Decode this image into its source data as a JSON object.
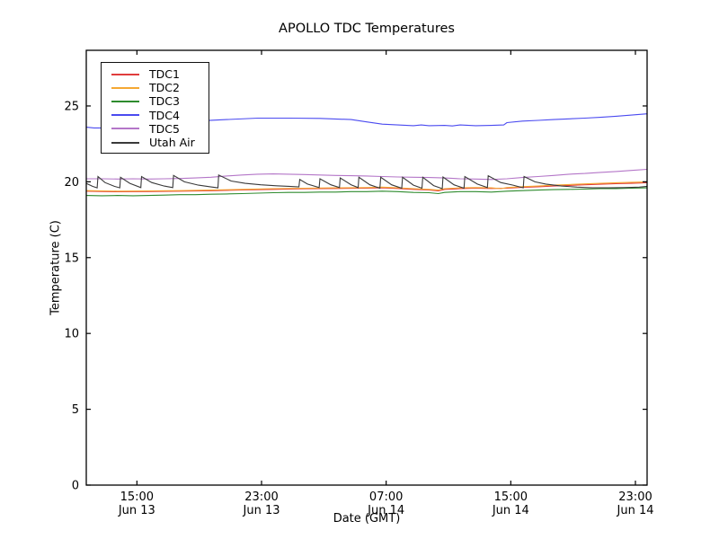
{
  "window": {
    "background": "#ffffff",
    "axis_color": "#000000"
  },
  "chart_data": {
    "type": "line",
    "title": "APOLLO TDC Temperatures",
    "xlabel": "Date (GMT)",
    "ylabel": "Temperature (C)",
    "x_unit": "hours from plot start (~11:45 Jun 13 GMT)",
    "xlim": [
      0,
      36
    ],
    "ylim": [
      0,
      28.67
    ],
    "grid": false,
    "legend_position": "upper left",
    "yticks": [
      0,
      5,
      10,
      15,
      20,
      25
    ],
    "xticks": [
      {
        "t": 3.25,
        "time": "15:00",
        "date": "Jun 13"
      },
      {
        "t": 11.25,
        "time": "23:00",
        "date": "Jun 13"
      },
      {
        "t": 19.25,
        "time": "07:00",
        "date": "Jun 14"
      },
      {
        "t": 27.25,
        "time": "15:00",
        "date": "Jun 14"
      },
      {
        "t": 35.25,
        "time": "23:00",
        "date": "Jun 14"
      }
    ],
    "series": [
      {
        "name": "TDC1",
        "color": "#e03c3c",
        "points": [
          [
            0,
            19.38
          ],
          [
            2,
            19.34
          ],
          [
            4,
            19.36
          ],
          [
            6,
            19.38
          ],
          [
            8,
            19.41
          ],
          [
            10,
            19.46
          ],
          [
            12,
            19.5
          ],
          [
            14,
            19.54
          ],
          [
            16,
            19.56
          ],
          [
            18,
            19.58
          ],
          [
            19,
            19.6
          ],
          [
            20,
            19.56
          ],
          [
            21,
            19.5
          ],
          [
            22,
            19.46
          ],
          [
            22.6,
            19.4
          ],
          [
            23,
            19.5
          ],
          [
            24,
            19.55
          ],
          [
            25,
            19.58
          ],
          [
            26,
            19.56
          ],
          [
            27,
            19.58
          ],
          [
            28,
            19.63
          ],
          [
            29,
            19.67
          ],
          [
            30,
            19.72
          ],
          [
            31,
            19.76
          ],
          [
            32,
            19.8
          ],
          [
            33,
            19.84
          ],
          [
            34,
            19.88
          ],
          [
            35,
            19.9
          ],
          [
            36,
            19.93
          ]
        ]
      },
      {
        "name": "TDC2",
        "color": "#f5a833",
        "points": [
          [
            0,
            19.42
          ],
          [
            2,
            19.38
          ],
          [
            4,
            19.4
          ],
          [
            6,
            19.42
          ],
          [
            8,
            19.45
          ],
          [
            10,
            19.5
          ],
          [
            12,
            19.55
          ],
          [
            14,
            19.58
          ],
          [
            16,
            19.6
          ],
          [
            18,
            19.62
          ],
          [
            19,
            19.65
          ],
          [
            20,
            19.6
          ],
          [
            21,
            19.55
          ],
          [
            22,
            19.5
          ],
          [
            22.6,
            19.45
          ],
          [
            23,
            19.55
          ],
          [
            24,
            19.6
          ],
          [
            25,
            19.62
          ],
          [
            26,
            19.6
          ],
          [
            26.6,
            19.55
          ],
          [
            27,
            19.62
          ],
          [
            28,
            19.68
          ],
          [
            29,
            19.72
          ],
          [
            30,
            19.78
          ],
          [
            31,
            19.82
          ],
          [
            32,
            19.86
          ],
          [
            33,
            19.9
          ],
          [
            34,
            19.94
          ],
          [
            35,
            19.97
          ],
          [
            36,
            20.0
          ]
        ]
      },
      {
        "name": "TDC3",
        "color": "#2e8b2e",
        "points": [
          [
            0,
            19.1
          ],
          [
            1,
            19.08
          ],
          [
            2,
            19.1
          ],
          [
            3,
            19.08
          ],
          [
            4,
            19.1
          ],
          [
            5,
            19.12
          ],
          [
            6,
            19.15
          ],
          [
            7,
            19.15
          ],
          [
            8,
            19.18
          ],
          [
            9,
            19.2
          ],
          [
            10,
            19.22
          ],
          [
            11,
            19.25
          ],
          [
            12,
            19.28
          ],
          [
            13,
            19.3
          ],
          [
            14,
            19.3
          ],
          [
            15,
            19.32
          ],
          [
            16,
            19.32
          ],
          [
            17,
            19.35
          ],
          [
            18,
            19.35
          ],
          [
            19,
            19.38
          ],
          [
            20,
            19.35
          ],
          [
            21,
            19.3
          ],
          [
            22,
            19.28
          ],
          [
            22.6,
            19.22
          ],
          [
            23,
            19.3
          ],
          [
            24,
            19.35
          ],
          [
            25,
            19.35
          ],
          [
            26,
            19.32
          ],
          [
            27,
            19.38
          ],
          [
            28,
            19.42
          ],
          [
            29,
            19.45
          ],
          [
            30,
            19.48
          ],
          [
            31,
            19.5
          ],
          [
            32,
            19.52
          ],
          [
            33,
            19.55
          ],
          [
            34,
            19.55
          ],
          [
            35,
            19.58
          ],
          [
            36,
            19.6
          ]
        ]
      },
      {
        "name": "TDC4",
        "color": "#4a4af0",
        "points": [
          [
            0,
            23.6
          ],
          [
            0.5,
            23.55
          ],
          [
            1.5,
            23.55
          ],
          [
            3,
            23.65
          ],
          [
            5,
            23.8
          ],
          [
            7,
            24.0
          ],
          [
            9,
            24.1
          ],
          [
            11,
            24.2
          ],
          [
            13,
            24.2
          ],
          [
            15,
            24.18
          ],
          [
            17,
            24.1
          ],
          [
            18,
            23.95
          ],
          [
            19,
            23.8
          ],
          [
            20,
            23.75
          ],
          [
            21,
            23.7
          ],
          [
            21.5,
            23.75
          ],
          [
            22,
            23.7
          ],
          [
            23,
            23.72
          ],
          [
            23.5,
            23.68
          ],
          [
            24,
            23.75
          ],
          [
            25,
            23.7
          ],
          [
            26,
            23.72
          ],
          [
            26.8,
            23.75
          ],
          [
            27,
            23.9
          ],
          [
            28,
            24.0
          ],
          [
            29,
            24.05
          ],
          [
            30,
            24.1
          ],
          [
            31,
            24.15
          ],
          [
            32,
            24.2
          ],
          [
            33,
            24.25
          ],
          [
            34,
            24.32
          ],
          [
            35,
            24.4
          ],
          [
            36,
            24.48
          ]
        ]
      },
      {
        "name": "TDC5",
        "color": "#b476c8",
        "points": [
          [
            0,
            20.2
          ],
          [
            1,
            20.2
          ],
          [
            2,
            20.18
          ],
          [
            3,
            20.2
          ],
          [
            4,
            20.18
          ],
          [
            5,
            20.2
          ],
          [
            6,
            20.22
          ],
          [
            7,
            20.25
          ],
          [
            8,
            20.3
          ],
          [
            9,
            20.38
          ],
          [
            10,
            20.45
          ],
          [
            11,
            20.5
          ],
          [
            12,
            20.52
          ],
          [
            13,
            20.5
          ],
          [
            14,
            20.48
          ],
          [
            15,
            20.45
          ],
          [
            16,
            20.42
          ],
          [
            17,
            20.4
          ],
          [
            18,
            20.38
          ],
          [
            19,
            20.35
          ],
          [
            20,
            20.32
          ],
          [
            21,
            20.3
          ],
          [
            22,
            20.28
          ],
          [
            23,
            20.25
          ],
          [
            24,
            20.2
          ],
          [
            25,
            20.18
          ],
          [
            26,
            20.15
          ],
          [
            27,
            20.2
          ],
          [
            28,
            20.28
          ],
          [
            29,
            20.35
          ],
          [
            30,
            20.42
          ],
          [
            31,
            20.5
          ],
          [
            32,
            20.55
          ],
          [
            33,
            20.62
          ],
          [
            34,
            20.68
          ],
          [
            35,
            20.75
          ],
          [
            36,
            20.82
          ]
        ]
      },
      {
        "name": "Utah Air",
        "color": "#3a3a3a",
        "points": [
          [
            0,
            19.9
          ],
          [
            0.4,
            19.7
          ],
          [
            0.7,
            19.6
          ],
          [
            0.75,
            20.35
          ],
          [
            1.2,
            19.95
          ],
          [
            1.8,
            19.7
          ],
          [
            2.15,
            19.6
          ],
          [
            2.2,
            20.3
          ],
          [
            2.8,
            19.9
          ],
          [
            3.5,
            19.62
          ],
          [
            3.55,
            20.35
          ],
          [
            4.2,
            19.95
          ],
          [
            5.0,
            19.72
          ],
          [
            5.55,
            19.62
          ],
          [
            5.6,
            20.42
          ],
          [
            6.3,
            20.0
          ],
          [
            7.2,
            19.78
          ],
          [
            8.0,
            19.66
          ],
          [
            8.45,
            19.6
          ],
          [
            8.5,
            20.45
          ],
          [
            9.3,
            20.05
          ],
          [
            10.2,
            19.9
          ],
          [
            11.2,
            19.8
          ],
          [
            12.2,
            19.74
          ],
          [
            13.0,
            19.7
          ],
          [
            13.65,
            19.66
          ],
          [
            13.7,
            20.15
          ],
          [
            14.2,
            19.85
          ],
          [
            14.95,
            19.62
          ],
          [
            15.0,
            20.2
          ],
          [
            15.7,
            19.8
          ],
          [
            16.25,
            19.62
          ],
          [
            16.3,
            20.25
          ],
          [
            17.0,
            19.8
          ],
          [
            17.45,
            19.62
          ],
          [
            17.5,
            20.3
          ],
          [
            18.2,
            19.8
          ],
          [
            18.85,
            19.58
          ],
          [
            18.9,
            20.3
          ],
          [
            19.6,
            19.8
          ],
          [
            20.25,
            19.58
          ],
          [
            20.3,
            20.3
          ],
          [
            21.0,
            19.78
          ],
          [
            21.55,
            19.58
          ],
          [
            21.6,
            20.3
          ],
          [
            22.3,
            19.75
          ],
          [
            22.85,
            19.55
          ],
          [
            22.9,
            20.32
          ],
          [
            23.6,
            19.8
          ],
          [
            24.25,
            19.58
          ],
          [
            24.3,
            20.35
          ],
          [
            25.1,
            19.85
          ],
          [
            25.75,
            19.62
          ],
          [
            25.8,
            20.4
          ],
          [
            26.6,
            19.95
          ],
          [
            27.4,
            19.78
          ],
          [
            28.05,
            19.6
          ],
          [
            28.1,
            20.35
          ],
          [
            28.8,
            20.0
          ],
          [
            29.5,
            19.85
          ],
          [
            30.5,
            19.72
          ],
          [
            31.5,
            19.65
          ],
          [
            32.5,
            19.6
          ],
          [
            33.5,
            19.6
          ],
          [
            34.5,
            19.62
          ],
          [
            35.5,
            19.65
          ],
          [
            36,
            19.7
          ]
        ]
      }
    ]
  }
}
